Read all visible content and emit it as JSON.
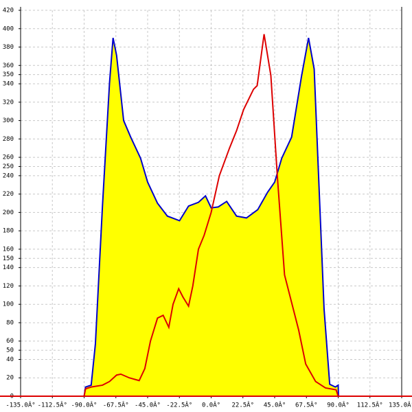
{
  "chart_data": {
    "type": "area",
    "xlim": [
      -135,
      135
    ],
    "ylim": [
      0,
      420
    ],
    "xticks": [
      {
        "value": -135,
        "label": "-135.0Â°"
      },
      {
        "value": -112.5,
        "label": "-112.5Â°"
      },
      {
        "value": -90,
        "label": "-90.0Â°"
      },
      {
        "value": -67.5,
        "label": "-67.5Â°"
      },
      {
        "value": -45,
        "label": "-45.0Â°"
      },
      {
        "value": -22.5,
        "label": "-22.5Â°"
      },
      {
        "value": 0,
        "label": "0.0Â°"
      },
      {
        "value": 22.5,
        "label": "22.5Â°"
      },
      {
        "value": 45,
        "label": "45.0Â°"
      },
      {
        "value": 67.5,
        "label": "67.5Â°"
      },
      {
        "value": 90,
        "label": "90.0Â°"
      },
      {
        "value": 112.5,
        "label": "112.5Â°"
      },
      {
        "value": 135,
        "label": "135.0Â°"
      }
    ],
    "yticks": [
      0,
      20,
      40,
      50,
      60,
      80,
      100,
      120,
      140,
      150,
      160,
      180,
      200,
      220,
      240,
      250,
      260,
      280,
      300,
      320,
      340,
      350,
      360,
      380,
      400,
      420
    ],
    "grid": true,
    "series": [
      {
        "color": "#0000cc",
        "fill": "#ffff00",
        "x": [
          -90,
          -89,
          -85,
          -82,
          -77,
          -72,
          -69.5,
          -67,
          -62,
          -57,
          -50,
          -45,
          -38,
          -31,
          -22.4,
          -16,
          -9,
          -4,
          0,
          5,
          11,
          18,
          25,
          33,
          40,
          45,
          50,
          57,
          64,
          69,
          73,
          76,
          80,
          84,
          88,
          90,
          90.2
        ],
        "values": [
          0,
          10,
          12,
          57,
          207,
          341,
          390,
          371,
          300,
          282,
          259,
          233,
          210,
          196,
          191,
          207,
          211,
          218,
          205,
          206,
          212,
          196,
          194,
          203,
          222,
          233,
          259,
          282,
          348,
          390,
          356,
          244,
          95,
          13,
          10,
          12,
          0
        ]
      },
      {
        "color": "#dd0000",
        "x": [
          -90,
          -89,
          -85,
          -77,
          -72,
          -67,
          -64,
          -58,
          -51,
          -47,
          -43,
          -38,
          -34,
          -30,
          -27,
          -23,
          -20,
          -16,
          -13,
          -9,
          -5,
          0,
          5.8,
          13,
          18,
          23,
          30,
          32.6,
          37.5,
          42.3,
          47,
          52,
          57,
          62,
          67,
          74,
          81,
          88.5,
          90
        ],
        "values": [
          0,
          8,
          10,
          12,
          16,
          23,
          24,
          20,
          17,
          30,
          60,
          85,
          88,
          75,
          100,
          117,
          108,
          98,
          120,
          160,
          175,
          200,
          240,
          270,
          289,
          312,
          334,
          338,
          394,
          349,
          237,
          132,
          102,
          72,
          35,
          16,
          9,
          7,
          0
        ]
      }
    ]
  }
}
